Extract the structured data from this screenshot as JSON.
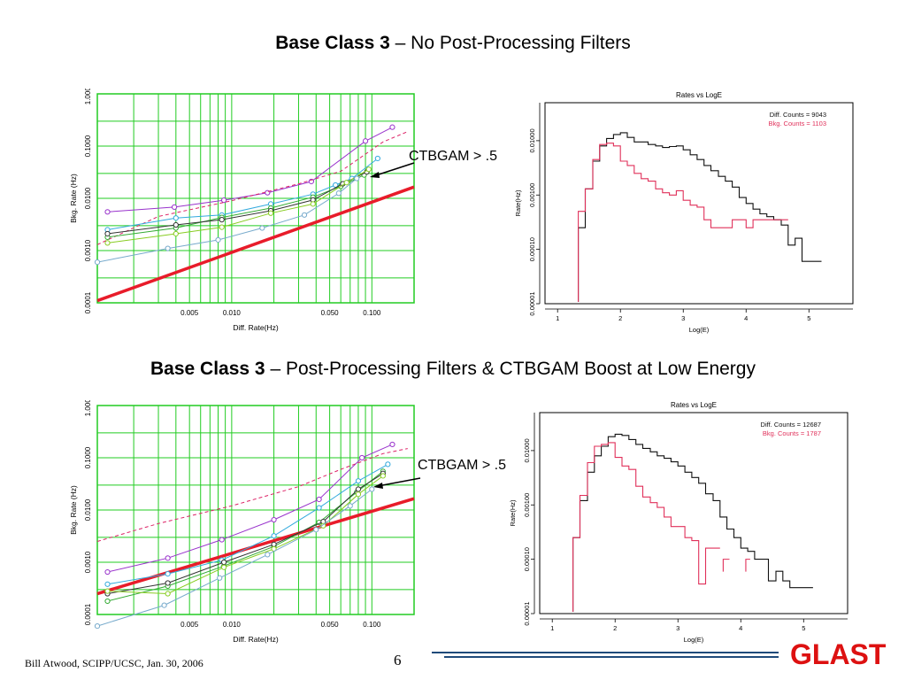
{
  "slide": {
    "sections": [
      {
        "title_bold": "Base Class 3",
        "title_rest": " – No Post-Processing Filters",
        "title_rest_italic": false,
        "annotation": "CTBGAM > .5"
      },
      {
        "title_bold": "Base Class 3",
        "title_rest": " – Post-Processing Filters & CTBGAM Boost at Low Energy",
        "title_rest_italic": false,
        "annotation": "CTBGAM > .5"
      }
    ],
    "footer": "Bill Atwood,  SCIPP/UCSC, Jan. 30, 2006",
    "page_number": "6",
    "logo": "GLAST",
    "colors": {
      "grid_plot_bg": "#ffffff",
      "grid_line": "#22cc22",
      "reference_line": "#e81c2a",
      "diff_hist": "#111111",
      "bkg_hist": "#e0305a",
      "logo": "#dd1111",
      "footer_rule": "#1f4a7a"
    }
  },
  "chart_data": [
    {
      "type": "line",
      "title": "",
      "xlabel": "Diff. Rate(Hz)",
      "ylabel": "Bkg. Rate (Hz)",
      "xscale": "log",
      "yscale": "log",
      "xlim": [
        0.0011,
        0.2
      ],
      "ylim": [
        0.0001,
        1.0
      ],
      "x_ticks": [
        0.005,
        0.01,
        0.05,
        0.1
      ],
      "x_tick_labels": [
        "0.005",
        "0.010",
        "0.050",
        "0.100"
      ],
      "y_ticks": [
        0.0001,
        0.001,
        0.01,
        0.1,
        1.0
      ],
      "y_tick_labels": [
        "0.0001",
        "0.0010",
        "0.0100",
        "0.1000",
        "1.0000"
      ],
      "grid": true,
      "reference_line": {
        "x": [
          0.0011,
          0.2
        ],
        "y": [
          0.00011,
          0.0165
        ]
      },
      "series": [
        {
          "color": "#9933cc",
          "dash": false,
          "points": [
            [
              0.0013,
              0.0055
            ],
            [
              0.0039,
              0.0068
            ],
            [
              0.0088,
              0.0092
            ],
            [
              0.018,
              0.0128
            ],
            [
              0.037,
              0.021
            ],
            [
              0.09,
              0.125
            ],
            [
              0.14,
              0.23
            ]
          ]
        },
        {
          "color": "#dd2266",
          "dash": true,
          "points": [
            [
              0.0011,
              0.0013
            ],
            [
              0.003,
              0.0045
            ],
            [
              0.01,
              0.009
            ],
            [
              0.03,
              0.019
            ],
            [
              0.06,
              0.033
            ],
            [
              0.12,
              0.12
            ],
            [
              0.18,
              0.19
            ]
          ]
        },
        {
          "color": "#33aadd",
          "dash": false,
          "points": [
            [
              0.0013,
              0.0025
            ],
            [
              0.004,
              0.0042
            ],
            [
              0.0085,
              0.0048
            ],
            [
              0.019,
              0.0078
            ],
            [
              0.038,
              0.012
            ],
            [
              0.055,
              0.018
            ],
            [
              0.072,
              0.024
            ],
            [
              0.11,
              0.058
            ]
          ]
        },
        {
          "color": "#33aa33",
          "dash": false,
          "points": [
            [
              0.0013,
              0.0018
            ],
            [
              0.004,
              0.0027
            ],
            [
              0.0085,
              0.0043
            ],
            [
              0.019,
              0.0065
            ],
            [
              0.038,
              0.0105
            ],
            [
              0.06,
              0.017
            ],
            [
              0.088,
              0.028
            ]
          ]
        },
        {
          "color": "#333333",
          "dash": false,
          "points": [
            [
              0.0013,
              0.0021
            ],
            [
              0.004,
              0.0031
            ],
            [
              0.0085,
              0.0039
            ],
            [
              0.019,
              0.0058
            ],
            [
              0.038,
              0.0093
            ],
            [
              0.062,
              0.019
            ],
            [
              0.092,
              0.032
            ]
          ]
        },
        {
          "color": "#88cc22",
          "dash": false,
          "points": [
            [
              0.0013,
              0.0014
            ],
            [
              0.004,
              0.0021
            ],
            [
              0.0085,
              0.0028
            ],
            [
              0.019,
              0.0052
            ],
            [
              0.038,
              0.0078
            ],
            [
              0.066,
              0.02
            ],
            [
              0.095,
              0.036
            ]
          ]
        },
        {
          "color": "#77aacc",
          "dash": false,
          "points": [
            [
              0.0011,
              0.0006
            ],
            [
              0.0035,
              0.0011
            ],
            [
              0.008,
              0.0016
            ],
            [
              0.0165,
              0.0027
            ],
            [
              0.033,
              0.0048
            ],
            [
              0.058,
              0.0125
            ],
            [
              0.078,
              0.024
            ]
          ]
        }
      ]
    },
    {
      "type": "line",
      "title": "Rates vs LogE",
      "xlabel": "Log(E)",
      "ylabel": "Rate(Hz)",
      "yscale": "log",
      "xlim": [
        0.8,
        5.7
      ],
      "ylim": [
        1e-05,
        0.05
      ],
      "x_ticks": [
        1,
        2,
        3,
        4,
        5
      ],
      "x_tick_labels": [
        "1",
        "2",
        "3",
        "4",
        "5"
      ],
      "y_ticks": [
        1e-05,
        0.0001,
        0.001,
        0.01
      ],
      "y_tick_labels": [
        "0.00001",
        "0.00010",
        "0.00100",
        "0.01000"
      ],
      "legend": [
        "Diff. Counts = 9043",
        "Bkg. Counts = 1103"
      ],
      "series": [
        {
          "color": "#111111",
          "edges": [
            1.33,
            1.44,
            1.56,
            1.67,
            1.78,
            1.89,
            2.0,
            2.11,
            2.22,
            2.33,
            2.44,
            2.56,
            2.67,
            2.78,
            2.89,
            3.0,
            3.11,
            3.22,
            3.33,
            3.44,
            3.56,
            3.67,
            3.78,
            3.89,
            4.0,
            4.11,
            4.22,
            4.33,
            4.44,
            4.56,
            4.67,
            4.78,
            4.89,
            5.0,
            5.2
          ],
          "values": [
            0.00025,
            0.0013,
            0.0042,
            0.008,
            0.011,
            0.013,
            0.014,
            0.0115,
            0.0095,
            0.0095,
            0.0085,
            0.008,
            0.0075,
            0.0078,
            0.008,
            0.0068,
            0.0055,
            0.0045,
            0.0035,
            0.0028,
            0.0022,
            0.0018,
            0.0014,
            0.0009,
            0.0007,
            0.00055,
            0.00045,
            0.0004,
            0.00035,
            0.00028,
            0.00012,
            0.00016,
            6e-05,
            6e-05
          ]
        },
        {
          "color": "#e0305a",
          "edges": [
            1.33,
            1.44,
            1.56,
            1.67,
            1.78,
            1.89,
            2.0,
            2.11,
            2.22,
            2.33,
            2.44,
            2.56,
            2.67,
            2.78,
            2.89,
            3.0,
            3.11,
            3.22,
            3.33,
            3.44,
            3.56,
            3.67,
            3.78,
            3.89,
            4.0,
            4.11,
            4.22,
            4.33,
            4.44,
            4.56,
            4.67
          ],
          "values": [
            0.0005,
            0.0013,
            0.0045,
            0.0085,
            0.009,
            0.008,
            0.0042,
            0.0035,
            0.0025,
            0.002,
            0.0018,
            0.0013,
            0.0011,
            0.001,
            0.0012,
            0.0008,
            0.00065,
            0.0006,
            0.00035,
            0.00025,
            0.00025,
            0.00025,
            0.00035,
            0.00035,
            0.00025,
            0.00035,
            0.00035,
            0.00035,
            0.00035,
            0.00035
          ]
        }
      ]
    },
    {
      "type": "line",
      "title": "",
      "xlabel": "Diff. Rate(Hz)",
      "ylabel": "Bkg. Rate (Hz)",
      "xscale": "log",
      "yscale": "log",
      "xlim": [
        0.0011,
        0.2
      ],
      "ylim": [
        0.0001,
        1.0
      ],
      "x_ticks": [
        0.005,
        0.01,
        0.05,
        0.1
      ],
      "x_tick_labels": [
        "0.005",
        "0.010",
        "0.050",
        "0.100"
      ],
      "y_ticks": [
        0.0001,
        0.001,
        0.01,
        0.1,
        1.0
      ],
      "y_tick_labels": [
        "0.0001",
        "0.0010",
        "0.0100",
        "0.1000",
        "1.0000"
      ],
      "grid": true,
      "reference_line": {
        "x": [
          0.0011,
          0.2
        ],
        "y": [
          0.00025,
          0.0165
        ]
      },
      "series": [
        {
          "color": "#9933cc",
          "dash": false,
          "points": [
            [
              0.0013,
              0.00065
            ],
            [
              0.0035,
              0.0012
            ],
            [
              0.0085,
              0.0027
            ],
            [
              0.02,
              0.0065
            ],
            [
              0.042,
              0.016
            ],
            [
              0.085,
              0.1
            ],
            [
              0.14,
              0.18
            ]
          ]
        },
        {
          "color": "#dd2266",
          "dash": true,
          "points": [
            [
              0.0011,
              0.0025
            ],
            [
              0.003,
              0.0055
            ],
            [
              0.01,
              0.012
            ],
            [
              0.03,
              0.028
            ],
            [
              0.06,
              0.06
            ],
            [
              0.12,
              0.12
            ],
            [
              0.18,
              0.15
            ]
          ]
        },
        {
          "color": "#33aadd",
          "dash": false,
          "points": [
            [
              0.0013,
              0.00038
            ],
            [
              0.0035,
              0.0006
            ],
            [
              0.0085,
              0.0011
            ],
            [
              0.02,
              0.0032
            ],
            [
              0.042,
              0.011
            ],
            [
              0.08,
              0.036
            ],
            [
              0.13,
              0.075
            ]
          ]
        },
        {
          "color": "#33aa33",
          "dash": false,
          "points": [
            [
              0.0013,
              0.00018
            ],
            [
              0.0035,
              0.00035
            ],
            [
              0.0088,
              0.00085
            ],
            [
              0.02,
              0.002
            ],
            [
              0.042,
              0.0058
            ],
            [
              0.078,
              0.022
            ],
            [
              0.12,
              0.055
            ]
          ]
        },
        {
          "color": "#333333",
          "dash": false,
          "points": [
            [
              0.0013,
              0.00025
            ],
            [
              0.0035,
              0.0004
            ],
            [
              0.0088,
              0.001
            ],
            [
              0.02,
              0.0022
            ],
            [
              0.045,
              0.006
            ],
            [
              0.08,
              0.025
            ],
            [
              0.12,
              0.05
            ]
          ]
        },
        {
          "color": "#88cc22",
          "dash": false,
          "points": [
            [
              0.0013,
              0.00028
            ],
            [
              0.0035,
              0.00025
            ],
            [
              0.0088,
              0.0008
            ],
            [
              0.02,
              0.0018
            ],
            [
              0.045,
              0.005
            ],
            [
              0.08,
              0.02
            ],
            [
              0.12,
              0.045
            ]
          ]
        },
        {
          "color": "#77aacc",
          "dash": false,
          "points": [
            [
              0.0011,
              6e-05
            ],
            [
              0.0033,
              0.00015
            ],
            [
              0.0082,
              0.0005
            ],
            [
              0.018,
              0.0014
            ],
            [
              0.04,
              0.0042
            ],
            [
              0.07,
              0.012
            ],
            [
              0.1,
              0.025
            ]
          ]
        }
      ]
    },
    {
      "type": "line",
      "title": "Rates vs LogE",
      "xlabel": "Log(E)",
      "ylabel": "Rate(Hz)",
      "yscale": "log",
      "xlim": [
        0.8,
        5.7
      ],
      "ylim": [
        1e-05,
        0.05
      ],
      "x_ticks": [
        1,
        2,
        3,
        4,
        5
      ],
      "x_tick_labels": [
        "1",
        "2",
        "3",
        "4",
        "5"
      ],
      "y_ticks": [
        1e-05,
        0.0001,
        0.001,
        0.01
      ],
      "y_tick_labels": [
        "0.00001",
        "0.00010",
        "0.00100",
        "0.01000"
      ],
      "legend": [
        "Diff. Counts = 12687",
        "Bkg. Counts = 1787"
      ],
      "series": [
        {
          "color": "#111111",
          "edges": [
            1.33,
            1.44,
            1.56,
            1.67,
            1.78,
            1.89,
            2.0,
            2.11,
            2.22,
            2.33,
            2.44,
            2.56,
            2.67,
            2.78,
            2.89,
            3.0,
            3.11,
            3.22,
            3.33,
            3.44,
            3.56,
            3.67,
            3.78,
            3.89,
            4.0,
            4.11,
            4.22,
            4.33,
            4.44,
            4.56,
            4.67,
            4.78,
            4.89,
            5.0,
            5.15
          ],
          "values": [
            0.00025,
            0.0012,
            0.004,
            0.008,
            0.012,
            0.018,
            0.02,
            0.019,
            0.016,
            0.013,
            0.011,
            0.0095,
            0.008,
            0.0072,
            0.0062,
            0.0052,
            0.004,
            0.0032,
            0.0025,
            0.0016,
            0.0012,
            0.0006,
            0.00036,
            0.00025,
            0.00016,
            0.00014,
            0.0001,
            0.0001,
            4e-05,
            6e-05,
            4e-05,
            3e-05,
            3e-05,
            3e-05
          ]
        },
        {
          "color": "#e0305a",
          "edges": [
            1.33,
            1.44,
            1.56,
            1.67,
            1.78,
            1.89,
            2.0,
            2.11,
            2.22,
            2.33,
            2.44,
            2.56,
            2.67,
            2.78,
            2.89,
            3.0,
            3.11,
            3.22,
            3.33,
            3.44,
            3.56,
            3.67
          ],
          "values": [
            0.00025,
            0.0015,
            0.006,
            0.012,
            0.013,
            0.014,
            0.0075,
            0.0052,
            0.0045,
            0.0022,
            0.0014,
            0.0011,
            0.0009,
            0.0006,
            0.0004,
            0.0004,
            0.00025,
            0.00022,
            3.5e-05,
            0.00016,
            0.00016
          ],
          "fragments": [
            {
              "x": [
                3.72,
                3.82
              ],
              "y": 0.0001
            },
            {
              "x": [
                4.08,
                4.15
              ],
              "y": 0.0001
            }
          ]
        }
      ]
    }
  ]
}
